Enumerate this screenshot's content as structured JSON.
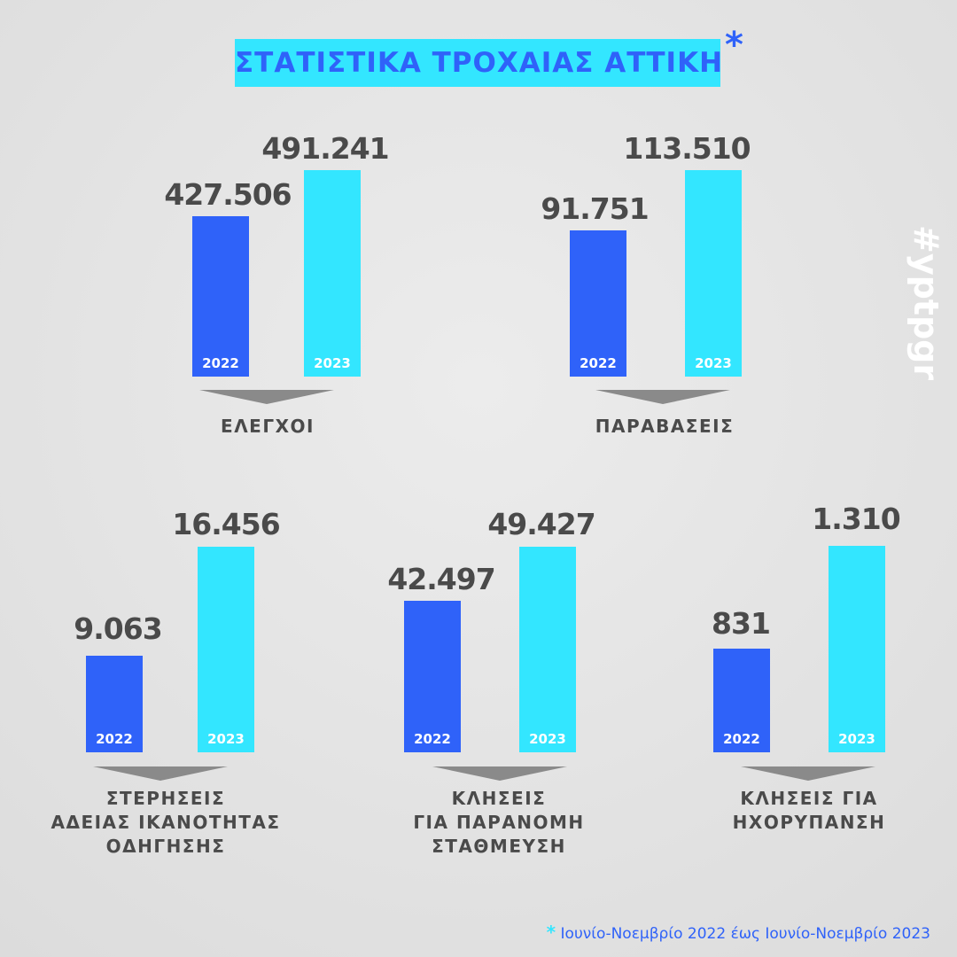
{
  "title": "ΣΤΑΤΙΣΤΙΚΑ ΤΡΟΧΑΙΑΣ ΑΤΤΙΚΗ",
  "title_marker": "*",
  "hashtag": "#yptpgr",
  "footnote": {
    "marker": "*",
    "text": "Ιουνίο-Νοεμβρίο 2022 έως Ιουνίο-Νοεμβρίο 2023"
  },
  "colors": {
    "y2022": "#2f62f9",
    "y2023": "#33e6ff"
  },
  "chart_data": [
    {
      "type": "bar",
      "title": "ΕΛΕΓΧΟΙ",
      "categories": [
        "2022",
        "2023"
      ],
      "values": [
        427506,
        491241
      ],
      "labels": [
        "427.506",
        "491.241"
      ]
    },
    {
      "type": "bar",
      "title": "ΠΑΡΑΒΑΣΕΙΣ",
      "categories": [
        "2022",
        "2023"
      ],
      "values": [
        91751,
        113510
      ],
      "labels": [
        "91.751",
        "113.510"
      ]
    },
    {
      "type": "bar",
      "title": "ΣΤΕΡΗΣΕΙΣ ΑΔΕΙΑΣ ΙΚΑΝΟΤΗΤΑΣ ΟΔΗΓΗΣΗΣ",
      "title_lines": [
        "ΣΤΕΡΗΣΕΙΣ",
        "ΑΔΕΙΑΣ ΙΚΑΝΟΤΗΤΑΣ",
        "ΟΔΗΓΗΣΗΣ"
      ],
      "categories": [
        "2022",
        "2023"
      ],
      "values": [
        9063,
        16456
      ],
      "labels": [
        "9.063",
        "16.456"
      ]
    },
    {
      "type": "bar",
      "title": "ΚΛΗΣΕΙΣ ΓΙΑ ΠΑΡΑΝΟΜΗ ΣΤΑΘΜΕΥΣΗ",
      "title_lines": [
        "ΚΛΗΣΕΙΣ",
        "ΓΙΑ ΠΑΡΑΝΟΜΗ",
        "ΣΤΑΘΜΕΥΣΗ"
      ],
      "categories": [
        "2022",
        "2023"
      ],
      "values": [
        42497,
        49427
      ],
      "labels": [
        "42.497",
        "49.427"
      ]
    },
    {
      "type": "bar",
      "title": "ΚΛΗΣΕΙΣ ΓΙΑ ΗΧΟΡΥΠΑΝΣΗ",
      "title_lines": [
        "ΚΛΗΣΕΙΣ ΓΙΑ",
        "ΗΧΟΡΥΠΑΝΣΗ"
      ],
      "categories": [
        "2022",
        "2023"
      ],
      "values": [
        831,
        1310
      ],
      "labels": [
        "831",
        "1.310"
      ]
    }
  ]
}
